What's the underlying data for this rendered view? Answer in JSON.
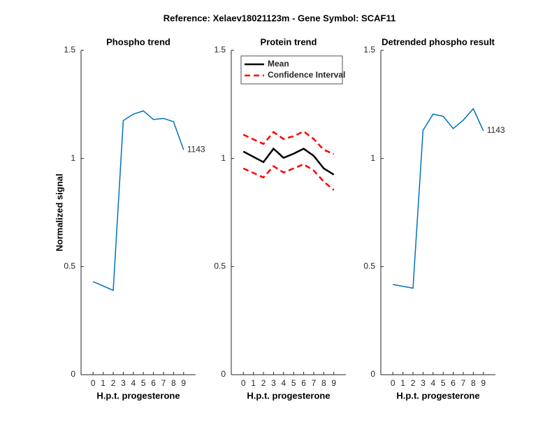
{
  "title": "Reference:  Xelaev18021123m - Gene Symbol:  SCAF11",
  "chart_data": [
    {
      "type": "line",
      "title": "Phospho trend",
      "x_label": "H.p.t. progesterone",
      "y_label": "Normalized signal",
      "x": [
        0,
        2,
        3,
        4,
        5,
        6,
        7,
        8,
        9
      ],
      "series": [
        {
          "color": "#0072bd",
          "values": [
            0.43,
            0.39,
            1.175,
            1.205,
            1.22,
            1.18,
            1.185,
            1.17,
            1.04
          ]
        }
      ],
      "annotation": "1143",
      "xlim": [
        -1.2,
        10.2
      ],
      "xticks": [
        0,
        1,
        2,
        3,
        4,
        5,
        6,
        7,
        8,
        9
      ],
      "ylim": [
        0,
        1.5
      ],
      "yticks": [
        0,
        0.5,
        1,
        1.5
      ]
    },
    {
      "type": "line",
      "title": "Protein trend",
      "x_label": "H.p.t. progesterone",
      "legend": "northwest",
      "x": [
        0,
        2,
        3,
        4,
        5,
        6,
        7,
        8,
        9
      ],
      "series": [
        {
          "name": "Mean",
          "color": "#000000",
          "values": [
            1.032,
            0.983,
            1.045,
            1.003,
            1.022,
            1.045,
            1.012,
            0.954,
            0.925
          ]
        },
        {
          "name": "Confidence Interval",
          "color": "#ff0000",
          "dashed": true,
          "values": [
            1.11,
            1.067,
            1.122,
            1.09,
            1.103,
            1.125,
            1.09,
            1.04,
            1.02
          ],
          "lower": [
            0.954,
            0.912,
            0.964,
            0.935,
            0.954,
            0.973,
            0.944,
            0.893,
            0.854
          ]
        }
      ],
      "xlim": [
        -1.2,
        10.2
      ],
      "xticks": [
        0,
        1,
        2,
        3,
        4,
        5,
        6,
        7,
        8,
        9
      ],
      "ylim": [
        0,
        1.5
      ],
      "yticks": [
        0,
        0.5,
        1,
        1.5
      ]
    },
    {
      "type": "line",
      "title": "Detrended phospho result",
      "x_label": "H.p.t. progesterone",
      "x": [
        0,
        2,
        3,
        4,
        5,
        6,
        7,
        8,
        9
      ],
      "series": [
        {
          "color": "#0072bd",
          "values": [
            0.417,
            0.4,
            1.13,
            1.205,
            1.195,
            1.138,
            1.177,
            1.23,
            1.128
          ]
        }
      ],
      "annotation": "1143",
      "xlim": [
        -1.2,
        10.2
      ],
      "xticks": [
        0,
        1,
        2,
        3,
        4,
        5,
        6,
        7,
        8,
        9
      ],
      "ylim": [
        0,
        1.5
      ],
      "yticks": [
        0,
        0.5,
        1,
        1.5
      ]
    }
  ]
}
